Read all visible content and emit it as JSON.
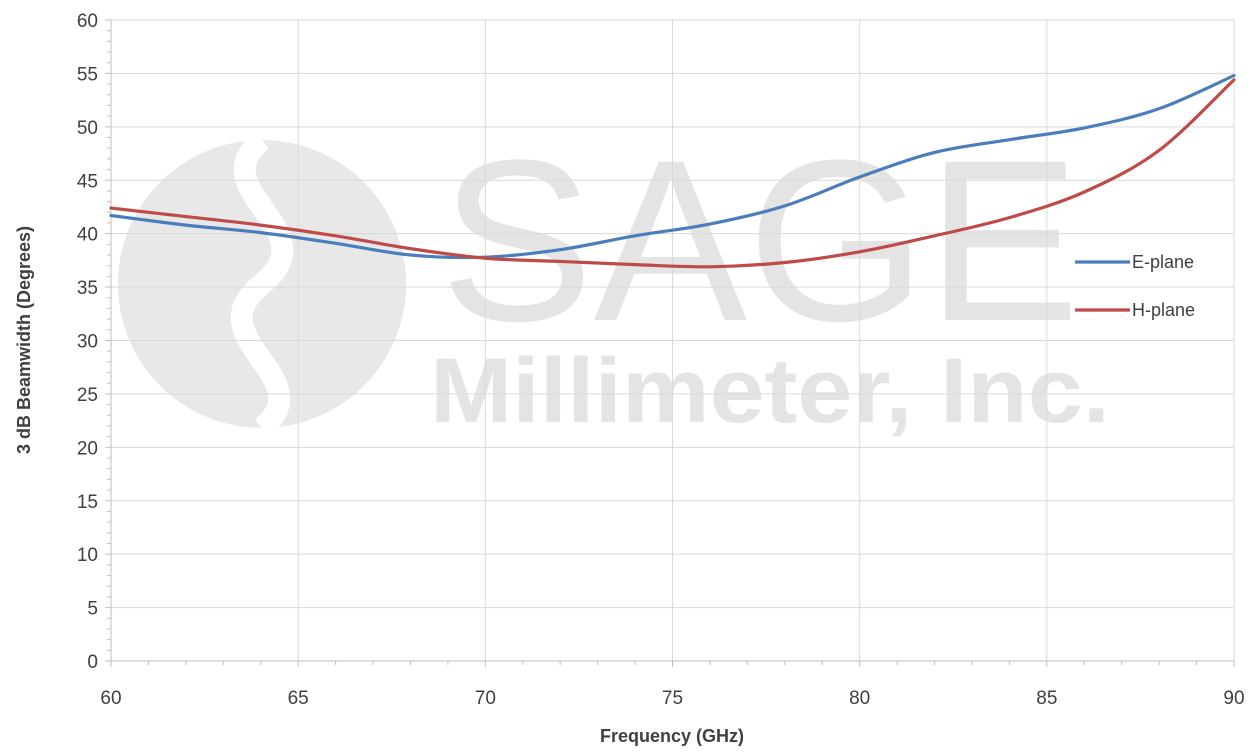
{
  "chart_data": {
    "type": "line",
    "title": "",
    "xlabel": "Frequency (GHz)",
    "ylabel": "3 dB Beamwidth (Degrees)",
    "xlim": [
      60,
      90
    ],
    "ylim": [
      0,
      60
    ],
    "x_ticks": [
      "60",
      "65",
      "70",
      "75",
      "80",
      "85",
      "90"
    ],
    "y_ticks": [
      "0",
      "5",
      "10",
      "15",
      "20",
      "25",
      "30",
      "35",
      "40",
      "45",
      "50",
      "55",
      "60"
    ],
    "grid": true,
    "legend_position": "right",
    "series": [
      {
        "name": "E-plane",
        "color": "#4a7ebb",
        "x": [
          60,
          62,
          64,
          66,
          68,
          70,
          72,
          74,
          76,
          78,
          80,
          82,
          84,
          86,
          88,
          90
        ],
        "y": [
          41.7,
          40.8,
          40.1,
          39.1,
          38.0,
          37.8,
          38.5,
          39.8,
          40.9,
          42.6,
          45.3,
          47.6,
          48.8,
          49.9,
          51.7,
          54.8
        ]
      },
      {
        "name": "H-plane",
        "color": "#be4b48",
        "x": [
          60,
          62,
          64,
          66,
          68,
          70,
          72,
          74,
          76,
          78,
          80,
          82,
          84,
          86,
          88,
          90
        ],
        "y": [
          42.4,
          41.6,
          40.8,
          39.8,
          38.6,
          37.7,
          37.4,
          37.1,
          36.9,
          37.3,
          38.3,
          39.8,
          41.5,
          43.9,
          47.8,
          54.4
        ]
      }
    ]
  },
  "watermark": {
    "line1": "SAGE",
    "line2": "Millimeter, Inc."
  }
}
